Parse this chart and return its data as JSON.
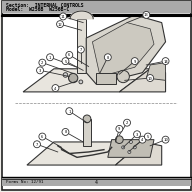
{
  "title_line1": "Section:  INTERNAL CONTROLS",
  "title_line2": "Model:  W256B  W256B-C",
  "footer_left": "Forms No: 12/91",
  "footer_center": "4",
  "bg_color": "#f0eeea",
  "border_color": "#222222",
  "line_color": "#333333",
  "text_color": "#111111",
  "header_bg": "#aaaaaa",
  "panel_color": "#e8e5de",
  "panel_color2": "#dedad2",
  "panel_color3": "#d8d5cd",
  "panel_color4": "#ccc9c0",
  "panel_color5": "#c0bdb4",
  "knob_color": "#b0ada5",
  "pipe_color": "#e0ddd5",
  "comp_color": "#cccccc"
}
